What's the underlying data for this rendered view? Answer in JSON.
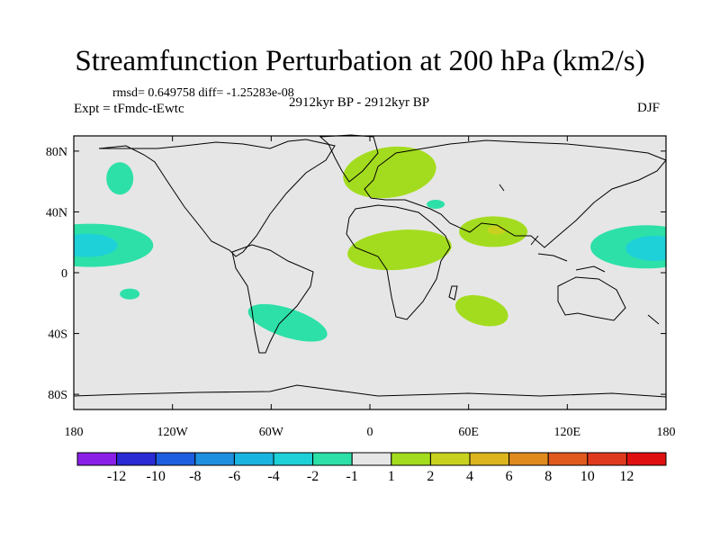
{
  "chart_data": {
    "type": "contour-map",
    "title": "Streamfunction Perturbation at 200 hPa (km2/s)",
    "stats_text": "rmsd= 0.649758 diff= -1.25283e-08",
    "experiment": "Expt = tFmdc-tEwtc",
    "period": "2912kyr BP - 2912kyr BP",
    "season": "DJF",
    "lon_range": [
      -180,
      180
    ],
    "lat_range": [
      -90,
      90
    ],
    "x_ticks": [
      {
        "value": -180,
        "label": "180"
      },
      {
        "value": -120,
        "label": "120W"
      },
      {
        "value": -60,
        "label": "60W"
      },
      {
        "value": 0,
        "label": "0"
      },
      {
        "value": 60,
        "label": "60E"
      },
      {
        "value": 120,
        "label": "120E"
      },
      {
        "value": 180,
        "label": "180"
      }
    ],
    "y_ticks": [
      {
        "value": 80,
        "label": "80N"
      },
      {
        "value": 40,
        "label": "40N"
      },
      {
        "value": 0,
        "label": "0"
      },
      {
        "value": -40,
        "label": "40S"
      },
      {
        "value": -80,
        "label": "80S"
      }
    ],
    "colorbar": {
      "levels": [
        "-12",
        "-10",
        "-8",
        "-6",
        "-4",
        "-2",
        "-1",
        "1",
        "2",
        "4",
        "6",
        "8",
        "10",
        "12"
      ],
      "colors": [
        "#8a1fe8",
        "#2b2bd6",
        "#1d5ee0",
        "#1f8fe0",
        "#1ab4e0",
        "#1ed0d8",
        "#2de0a8",
        "#e6e6e6",
        "#a3dc1e",
        "#c8d21e",
        "#dcb41e",
        "#e08a1e",
        "#e05a1e",
        "#e03a1e",
        "#e01010"
      ]
    },
    "regions": [
      {
        "name": "north-pacific-bering-negative",
        "class": "-2 to -1",
        "lon": -152,
        "lat": 62
      },
      {
        "name": "central-pacific-negative",
        "class": "-2 to -1",
        "lon": -170,
        "lat": 18
      },
      {
        "name": "central-pacific-core-negative",
        "class": "-4 to -2",
        "lon": -172,
        "lat": 18
      },
      {
        "name": "hawaii-small-negative",
        "class": "-2 to -1",
        "lon": -146,
        "lat": -14
      },
      {
        "name": "west-pacific-negative",
        "class": "-2 to -1",
        "lon": 168,
        "lat": 17
      },
      {
        "name": "west-pacific-core-negative",
        "class": "-4 to -2",
        "lon": 173,
        "lat": 16
      },
      {
        "name": "south-atlantic-negative",
        "class": "-2 to -1",
        "lon": -50,
        "lat": -33
      },
      {
        "name": "black-sea-negative",
        "class": "-2 to -1",
        "lon": 40,
        "lat": 45
      },
      {
        "name": "europe-positive",
        "class": "1 to 2",
        "lon": 12,
        "lat": 66
      },
      {
        "name": "north-africa-positive",
        "class": "1 to 2",
        "lon": 18,
        "lat": 15
      },
      {
        "name": "south-asia-positive",
        "class": "1 to 2",
        "lon": 75,
        "lat": 27
      },
      {
        "name": "tibet-core-positive",
        "class": "2 to 4",
        "lon": 77,
        "lat": 28
      },
      {
        "name": "madagascar-east-positive",
        "class": "1 to 2",
        "lon": 68,
        "lat": -25
      }
    ]
  }
}
